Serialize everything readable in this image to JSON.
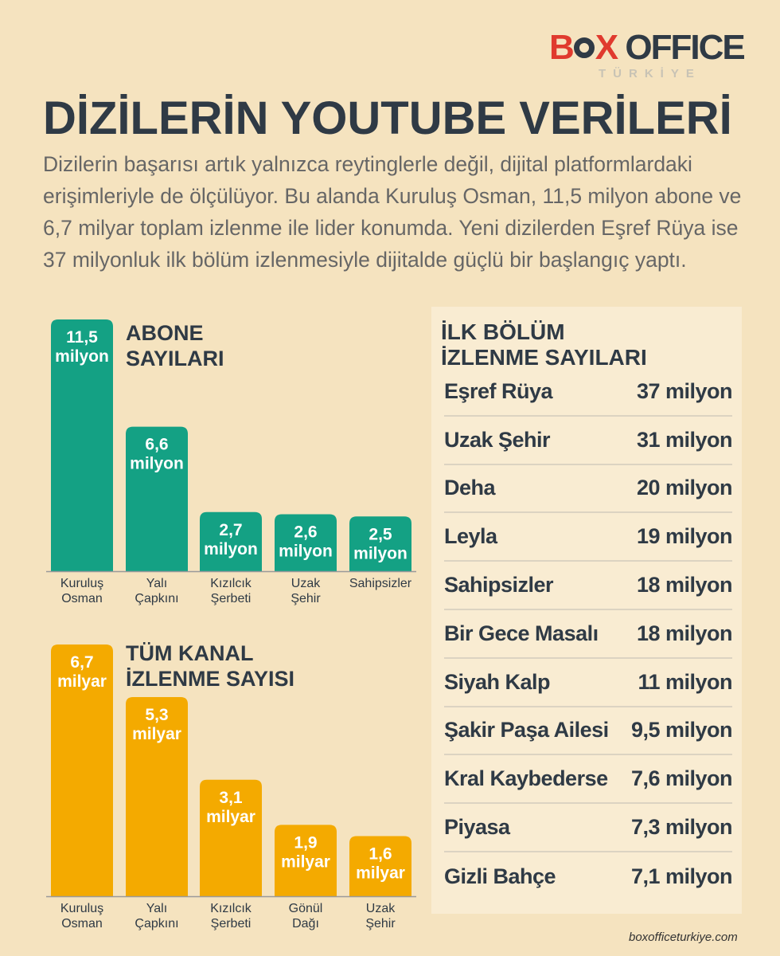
{
  "logo": {
    "box": "B",
    "x": "X",
    "office": "OFFICE",
    "sub": "TÜRKİYE"
  },
  "title": "DİZİLERİN YOUTUBE VERİLERİ",
  "subtitle": "Dizilerin başarısı artık yalnızca reytinglerle değil, dijital platformlardaki erişimleriyle de ölçülüyor. Bu alanda Kuruluş Osman, 11,5 milyon abone ve 6,7 milyar toplam izlenme ile lider konumda. Yeni dizilerden Eşref Rüya ise 37 milyonluk ilk bölüm izlenmesiyle  dijitalde güçlü bir başlangıç yaptı.",
  "colors": {
    "background": "#f5e3bf",
    "subs_bar": "#14a184",
    "views_bar": "#f4aa00",
    "panel": "#f9ecd2",
    "text_dark": "#2f3a45"
  },
  "chart_data": [
    {
      "type": "bar",
      "title_lines": [
        "ABONE",
        "SAYILARI"
      ],
      "categories": [
        [
          "Kuruluş",
          "Osman"
        ],
        [
          "Yalı",
          "Çapkını"
        ],
        [
          "Kızılcık",
          "Şerbeti"
        ],
        [
          "Uzak",
          "Şehir"
        ],
        [
          "Sahipsizler"
        ]
      ],
      "values": [
        11.5,
        6.6,
        2.7,
        2.6,
        2.5
      ],
      "labels": [
        [
          "11,5",
          "milyon"
        ],
        [
          "6,6",
          "milyon"
        ],
        [
          "2,7",
          "milyon"
        ],
        [
          "2,6",
          "milyon"
        ],
        [
          "2,5",
          "milyon"
        ]
      ],
      "unit": "milyon",
      "ylim": [
        0,
        11.5
      ]
    },
    {
      "type": "bar",
      "title_lines": [
        "TÜM KANAL",
        "İZLENME SAYISI"
      ],
      "categories": [
        [
          "Kuruluş",
          "Osman"
        ],
        [
          "Yalı",
          "Çapkını"
        ],
        [
          "Kızılcık",
          "Şerbeti"
        ],
        [
          "Gönül",
          "Dağı"
        ],
        [
          "Uzak",
          "Şehir"
        ]
      ],
      "values": [
        6.7,
        5.3,
        3.1,
        1.9,
        1.6
      ],
      "labels": [
        [
          "6,7",
          "milyar"
        ],
        [
          "5,3",
          "milyar"
        ],
        [
          "3,1",
          "milyar"
        ],
        [
          "1,9",
          "milyar"
        ],
        [
          "1,6",
          "milyar"
        ]
      ],
      "unit": "milyar",
      "ylim": [
        0,
        6.7
      ]
    },
    {
      "type": "table",
      "title_lines": [
        "İLK BÖLÜM",
        "İZLENME SAYILARI"
      ],
      "rows": [
        {
          "name": "Eşref Rüya",
          "value": "37 milyon"
        },
        {
          "name": "Uzak Şehir",
          "value": "31 milyon"
        },
        {
          "name": "Deha",
          "value": "20 milyon"
        },
        {
          "name": "Leyla",
          "value": "19 milyon"
        },
        {
          "name": "Sahipsizler",
          "value": "18 milyon"
        },
        {
          "name": "Bir Gece Masalı",
          "value": "18 milyon"
        },
        {
          "name": "Siyah Kalp",
          "value": "11 milyon"
        },
        {
          "name": "Şakir Paşa Ailesi",
          "value": "9,5 milyon"
        },
        {
          "name": "Kral Kaybederse",
          "value": "7,6 milyon"
        },
        {
          "name": "Piyasa",
          "value": "7,3 milyon"
        },
        {
          "name": "Gizli Bahçe",
          "value": "7,1 milyon"
        }
      ]
    }
  ],
  "footer": "boxofficeturkiye.com"
}
